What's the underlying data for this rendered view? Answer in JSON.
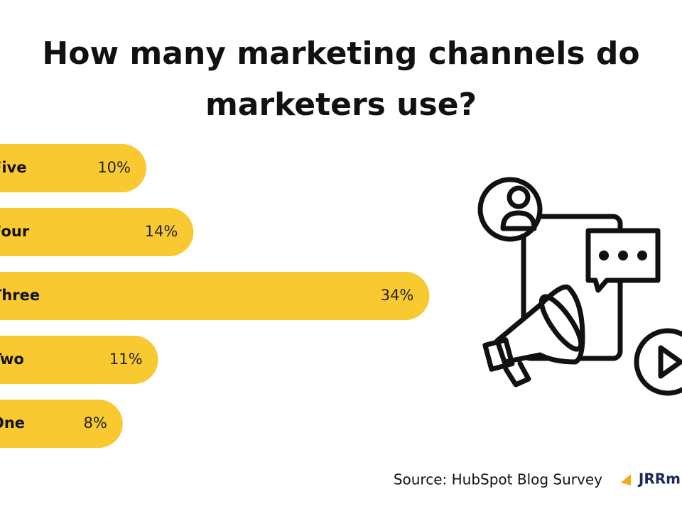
{
  "chart_data": {
    "type": "bar",
    "orientation": "horizontal",
    "title": [
      "How many marketing channels do",
      "marketers use?"
    ],
    "categories": [
      "Five",
      "Four",
      "Three",
      "Two",
      "One"
    ],
    "values": [
      10,
      14,
      34,
      11,
      8
    ],
    "value_labels": [
      "10%",
      "14%",
      "34%",
      "11%",
      "8%"
    ],
    "color": "#f9c932",
    "source": "Source: HubSpot Blog Survey",
    "logo": "JRRm"
  }
}
